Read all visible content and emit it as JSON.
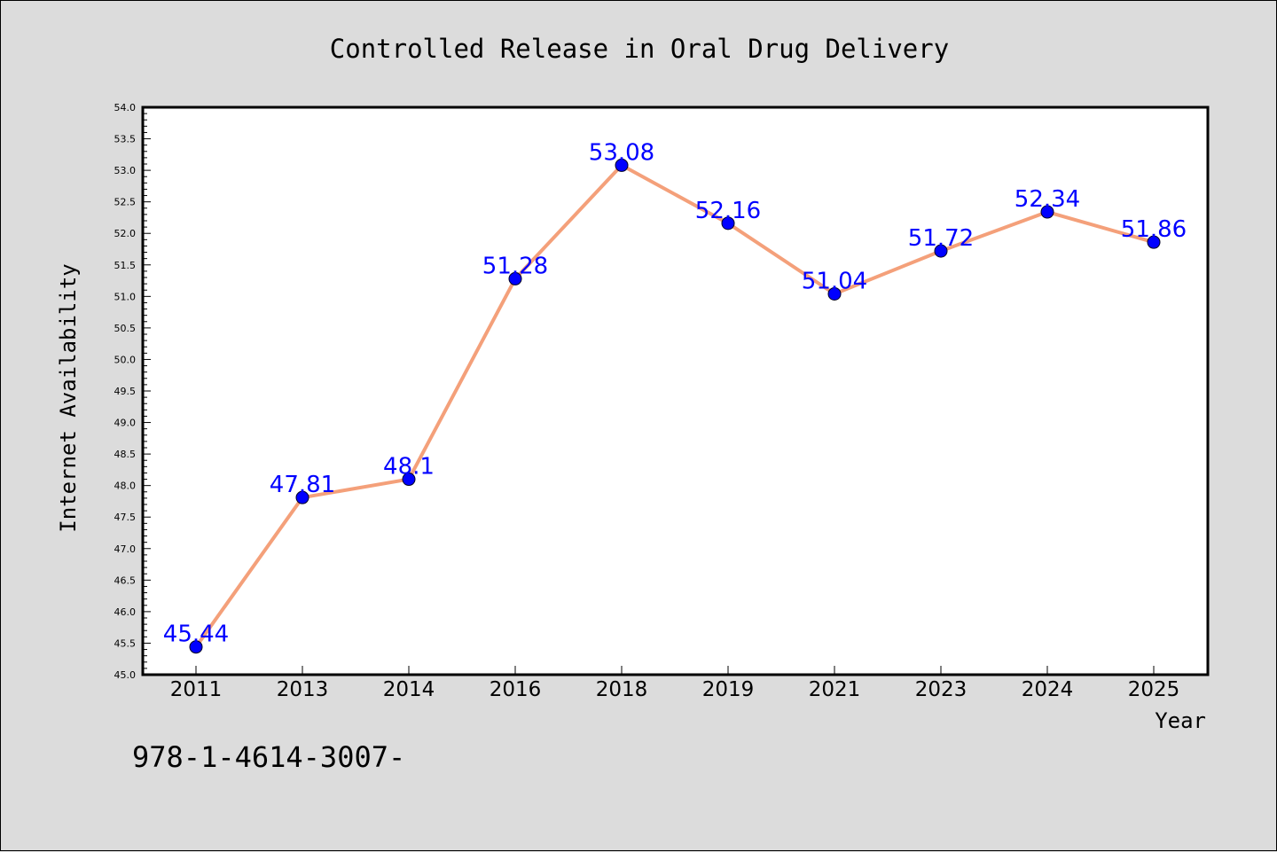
{
  "chart_data": {
    "type": "line",
    "title": "Controlled Release in Oral Drug Delivery",
    "xlabel": "Year",
    "ylabel": "Internet Availability",
    "categories": [
      "2011",
      "2013",
      "2014",
      "2016",
      "2018",
      "2019",
      "2021",
      "2023",
      "2024",
      "2025"
    ],
    "values": [
      45.44,
      47.81,
      48.1,
      51.28,
      53.08,
      52.16,
      51.04,
      51.72,
      52.34,
      51.86
    ],
    "data_labels": [
      "45.44",
      "47.81",
      "48.1",
      "51.28",
      "53.08",
      "52.16",
      "51.04",
      "51.72",
      "52.34",
      "51.86"
    ],
    "ylim": [
      45.0,
      54.0
    ],
    "yticks": [
      "45.0",
      "45.5",
      "46.0",
      "46.5",
      "47.0",
      "47.5",
      "48.0",
      "48.5",
      "49.0",
      "49.5",
      "50.0",
      "50.5",
      "51.0",
      "51.5",
      "52.0",
      "52.5",
      "53.0",
      "53.5",
      "54.0"
    ],
    "grid": false,
    "line_color": "#f4a07a",
    "marker_color": "#0000ff",
    "label_color": "#0000ff",
    "plot_background": "#ffffff",
    "page_background": "#dcdcdc"
  },
  "footer_code": "978-1-4614-3007-"
}
